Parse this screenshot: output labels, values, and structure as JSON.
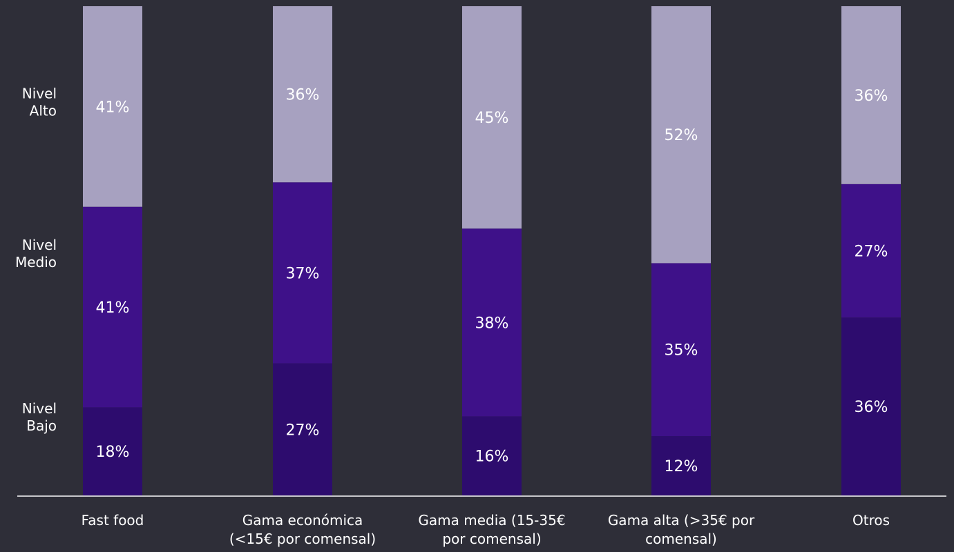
{
  "chart_data": {
    "type": "bar",
    "stacked": true,
    "percent_stacked": true,
    "categories": [
      [
        "Fast food"
      ],
      [
        "Gama económica",
        "(<15€ por comensal)"
      ],
      [
        "Gama media (15-35€",
        "por comensal)"
      ],
      [
        "Gama alta (>35€ por",
        "comensal)"
      ],
      [
        "Otros"
      ]
    ],
    "series": [
      {
        "name": "Nivel Bajo",
        "label_lines": [
          "Nivel",
          "Bajo"
        ],
        "values": [
          18,
          27,
          16,
          12,
          36
        ],
        "value_labels": [
          "18%",
          "27%",
          "16%",
          "12%",
          "36%"
        ]
      },
      {
        "name": "Nivel Medio",
        "label_lines": [
          "Nivel",
          "Medio"
        ],
        "values": [
          41,
          37,
          38,
          35,
          27
        ],
        "value_labels": [
          "41%",
          "37%",
          "38%",
          "35%",
          "27%"
        ]
      },
      {
        "name": "Nivel Alto",
        "label_lines": [
          "Nivel",
          "Alto"
        ],
        "values": [
          41,
          36,
          45,
          52,
          36
        ],
        "value_labels": [
          "41%",
          "36%",
          "45%",
          "52%",
          "36%"
        ]
      }
    ],
    "ylim": [
      0,
      100
    ],
    "grid": false,
    "legend": "left",
    "colors": {
      "background": "#2e2e38",
      "series": [
        "#2d0c6e",
        "#3e1189",
        "#a7a1c0"
      ],
      "text": "#ffffff",
      "axis": "#c8c8cc"
    }
  }
}
